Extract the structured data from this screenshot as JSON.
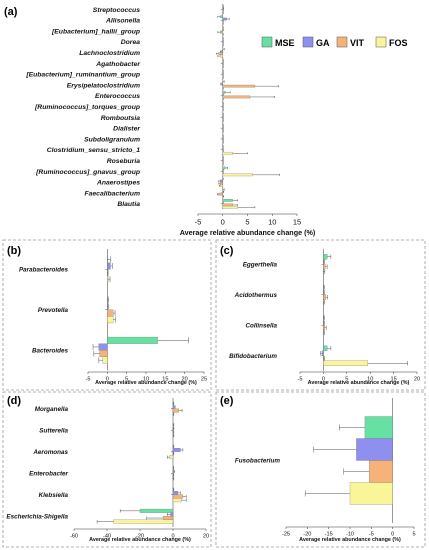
{
  "colors": {
    "MSE": "#66e0a3",
    "GA": "#8f8ff0",
    "VIT": "#f5b37a",
    "FOS": "#fbf59a"
  },
  "legend": [
    "MSE",
    "GA",
    "VIT",
    "FOS"
  ],
  "xlabel": "Average relative abundance change (%)",
  "chart_data": [
    {
      "panel": "(a)",
      "type": "bar",
      "orientation": "horizontal",
      "xlim": [
        -5,
        15
      ],
      "xticks": [
        "-5",
        "0",
        "5",
        "10",
        "15"
      ],
      "xlabel": "Average relative abundance change (%)",
      "legend_position": "right",
      "categories": [
        "Streptococcus",
        "Allisonella",
        "[Eubacterium]_hallii_group",
        "Dorea",
        "Lachnoclostridium",
        "Agathobacter",
        "[Eubacterium]_ruminantium_group",
        "Erysipelatoclostridium",
        "Enterococcus",
        "[Ruminococcus]_torques_group",
        "Romboutsia",
        "Dialister",
        "Subdoligranulum",
        "Clostridium_sensu_stricto_1",
        "Roseburia",
        "[Ruminococcus]_gnavus_group",
        "Anaerostipes",
        "Faecalibacterium",
        "Blautia"
      ],
      "series": [
        {
          "name": "MSE",
          "values": [
            0.0,
            -0.5,
            0.0,
            0.0,
            0.0,
            0.0,
            0.0,
            0.0,
            0.5,
            0.0,
            0.0,
            0.0,
            0.0,
            0.0,
            0.0,
            0.5,
            0.0,
            0.0,
            2.0
          ],
          "errors": [
            0.1,
            0.5,
            0.1,
            0.1,
            0.3,
            0.1,
            0.1,
            0.3,
            1.0,
            0.1,
            0.1,
            0.1,
            0.1,
            0.1,
            0.1,
            0.5,
            0.1,
            0.3,
            1.0
          ]
        },
        {
          "name": "GA",
          "values": [
            0.1,
            0.8,
            0.0,
            0.0,
            -0.2,
            0.0,
            0.0,
            -0.2,
            0.0,
            0.0,
            0.0,
            0.0,
            0.0,
            0.0,
            0.0,
            0.0,
            -0.5,
            0.0,
            0.0
          ],
          "errors": [
            0.1,
            0.5,
            0.1,
            0.1,
            0.3,
            0.1,
            0.1,
            0.2,
            0.1,
            0.1,
            0.1,
            0.1,
            0.1,
            0.1,
            0.1,
            0.1,
            0.3,
            0.2,
            0.1
          ]
        },
        {
          "name": "VIT",
          "values": [
            0.0,
            0.0,
            -0.5,
            0.0,
            -0.8,
            0.0,
            0.0,
            6.5,
            5.5,
            0.0,
            0.0,
            0.0,
            0.0,
            0.0,
            0.0,
            0.0,
            -0.5,
            -0.8,
            2.0
          ],
          "errors": [
            0.1,
            0.1,
            0.5,
            0.1,
            0.5,
            0.1,
            0.1,
            4.8,
            5.0,
            0.1,
            0.1,
            0.1,
            0.1,
            0.1,
            0.1,
            0.1,
            0.3,
            0.3,
            1.0
          ]
        },
        {
          "name": "FOS",
          "values": [
            0.0,
            0.0,
            0.0,
            0.0,
            -0.5,
            0.0,
            0.0,
            0.0,
            0.0,
            0.0,
            0.0,
            0.0,
            0.0,
            2.0,
            0.0,
            6.0,
            -0.5,
            0.0,
            3.0
          ],
          "errors": [
            0.1,
            0.1,
            0.1,
            0.1,
            0.5,
            0.1,
            0.1,
            0.1,
            0.1,
            0.1,
            0.1,
            0.1,
            0.1,
            3.0,
            0.1,
            5.5,
            0.2,
            0.2,
            3.5
          ]
        }
      ]
    },
    {
      "panel": "(b)",
      "type": "bar",
      "orientation": "horizontal",
      "xlim": [
        -5,
        25
      ],
      "xticks": [
        "-5",
        "0",
        "5",
        "10",
        "15",
        "20",
        "25"
      ],
      "xlabel": "Average relative abundance change (%)",
      "categories": [
        "Parabacteroides",
        "Prevotella",
        "Bacteroides"
      ],
      "series": [
        {
          "name": "MSE",
          "values": [
            0.0,
            0.0,
            13.0
          ],
          "errors": [
            0.8,
            0.3,
            8.0
          ]
        },
        {
          "name": "GA",
          "values": [
            0.8,
            0.0,
            -2.2
          ],
          "errors": [
            0.5,
            0.3,
            1.5
          ]
        },
        {
          "name": "VIT",
          "values": [
            0.0,
            1.5,
            -2.0
          ],
          "errors": [
            0.2,
            0.5,
            1.5
          ]
        },
        {
          "name": "FOS",
          "values": [
            0.2,
            1.5,
            -1.2
          ],
          "errors": [
            0.5,
            0.6,
            1.0
          ]
        }
      ]
    },
    {
      "panel": "(c)",
      "type": "bar",
      "orientation": "horizontal",
      "xlim": [
        -5,
        20
      ],
      "xticks": [
        "-5",
        "0",
        "5",
        "10",
        "15",
        "20"
      ],
      "xlabel": "Average relative abundance change (%)",
      "categories": [
        "Eggerthella",
        "Acidothermus",
        "Collinsella",
        "Bifidobacterium"
      ],
      "series": [
        {
          "name": "MSE",
          "values": [
            0.8,
            0.0,
            0.0,
            0.8
          ],
          "errors": [
            0.8,
            0.2,
            0.2,
            0.8
          ]
        },
        {
          "name": "GA",
          "values": [
            0.0,
            0.0,
            0.0,
            -0.3
          ],
          "errors": [
            0.2,
            0.2,
            0.2,
            0.3
          ]
        },
        {
          "name": "VIT",
          "values": [
            0.4,
            0.5,
            0.3,
            0.0
          ],
          "errors": [
            0.4,
            0.4,
            0.3,
            0.2
          ]
        },
        {
          "name": "FOS",
          "values": [
            0.0,
            0.0,
            0.0,
            9.5
          ],
          "errors": [
            0.3,
            0.2,
            0.2,
            8.5
          ]
        }
      ]
    },
    {
      "panel": "(d)",
      "type": "bar",
      "orientation": "horizontal",
      "xlim": [
        -60,
        20
      ],
      "xticks": [
        "-60",
        "-40",
        "-20",
        "0",
        "20"
      ],
      "xlabel": "Average relative abundance change (%)",
      "categories": [
        "Morganella",
        "Sutterella",
        "Aeromonas",
        "Enterobacter",
        "Klebsiella",
        "Escherichia-Shigella"
      ],
      "series": [
        {
          "name": "MSE",
          "values": [
            0.0,
            0.0,
            0.0,
            0.0,
            0.0,
            -20.0
          ],
          "errors": [
            0.5,
            0.5,
            0.5,
            0.5,
            0.5,
            12.0
          ]
        },
        {
          "name": "GA",
          "values": [
            0.8,
            0.0,
            4.5,
            0.5,
            3.0,
            -1.5
          ],
          "errors": [
            0.5,
            0.5,
            1.5,
            0.5,
            1.5,
            2.0
          ]
        },
        {
          "name": "VIT",
          "values": [
            3.5,
            0.0,
            0.0,
            0.0,
            6.0,
            -6.0
          ],
          "errors": [
            2.0,
            0.5,
            0.5,
            0.5,
            2.0,
            10.0
          ]
        },
        {
          "name": "FOS",
          "values": [
            0.0,
            0.0,
            -2.0,
            0.0,
            5.0,
            -36.0
          ],
          "errors": [
            0.5,
            0.5,
            1.5,
            0.5,
            3.0,
            10.0
          ]
        }
      ]
    },
    {
      "panel": "(e)",
      "type": "bar",
      "orientation": "horizontal",
      "xlim": [
        -25,
        5
      ],
      "xticks": [
        "-25",
        "-20",
        "-15",
        "-10",
        "-5",
        "0",
        "5"
      ],
      "xlabel": "Average relative abundance change (%)",
      "categories": [
        "Fusobacterium"
      ],
      "series": [
        {
          "name": "MSE",
          "values": [
            -6.5
          ],
          "errors": [
            6.0
          ]
        },
        {
          "name": "GA",
          "values": [
            -8.5
          ],
          "errors": [
            10.0
          ]
        },
        {
          "name": "VIT",
          "values": [
            -5.5
          ],
          "errors": [
            6.0
          ]
        },
        {
          "name": "FOS",
          "values": [
            -10.0
          ],
          "errors": [
            10.5
          ]
        }
      ]
    }
  ]
}
